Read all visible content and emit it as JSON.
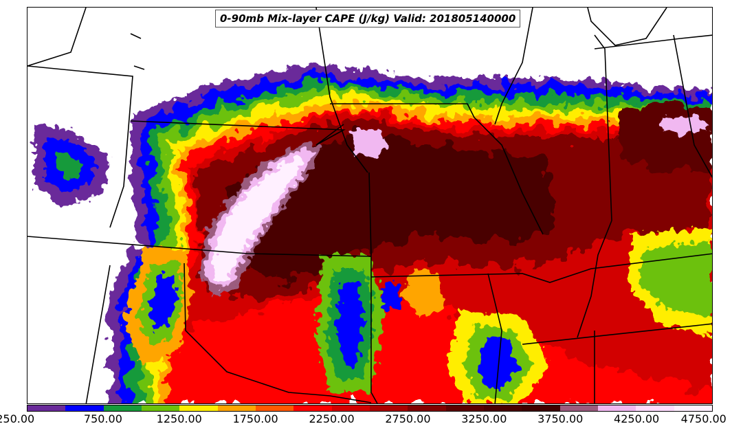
{
  "title": "0-90mb Mix-layer CAPE (J/kg) Valid: 201805140000",
  "colorbar": {
    "tick_labels": [
      "250.00",
      "750.00",
      "1250.00",
      "1750.00",
      "2250.00",
      "2750.00",
      "3250.00",
      "3750.00",
      "4250.00",
      "4750.00"
    ],
    "colors": [
      "#6a2a9a",
      "#0000ff",
      "#169a3a",
      "#6cc10c",
      "#ffee00",
      "#ffa500",
      "#ff5a00",
      "#ff0000",
      "#d20000",
      "#aa0000",
      "#800000",
      "#5c0000",
      "#4a0000",
      "#3e0000",
      "#9b5b7e",
      "#f1b8f1",
      "#ffdcff",
      "#fff0ff"
    ]
  },
  "map": {
    "region": "Central United States",
    "field": "CAPE",
    "units": "J/kg",
    "borders": "state",
    "land_color": "#ffffff",
    "border_color": "#000000"
  }
}
